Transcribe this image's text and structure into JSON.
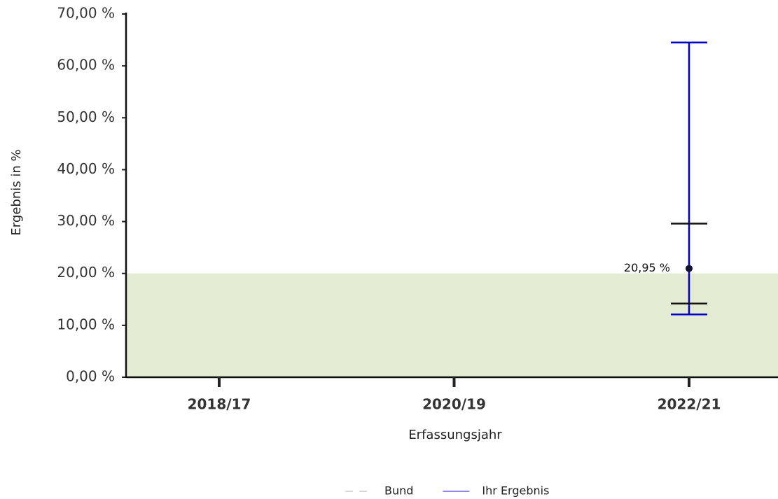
{
  "chart_data": {
    "type": "errorbar",
    "x_label": "Erfassungsjahr",
    "y_label": "Ergebnis in %",
    "categories": [
      "2018/17",
      "2020/19",
      "2022/21"
    ],
    "ylim": [
      0,
      70
    ],
    "yticks": [
      {
        "value": 0,
        "label": "0,00 %"
      },
      {
        "value": 10,
        "label": "10,00 %"
      },
      {
        "value": 20,
        "label": "20,00 %"
      },
      {
        "value": 30,
        "label": "30,00 %"
      },
      {
        "value": 40,
        "label": "40,00 %"
      },
      {
        "value": 50,
        "label": "50,00 %"
      },
      {
        "value": 60,
        "label": "60,00 %"
      },
      {
        "value": 70,
        "label": "70,00 %"
      }
    ],
    "reference_area": {
      "range": [
        0,
        20
      ],
      "color": "#e3ecd3"
    },
    "series": [
      {
        "name": "Bund",
        "color": "#aaaaaa",
        "dashed": true,
        "values": [
          null,
          null,
          null
        ]
      },
      {
        "name": "Ihr Ergebnis",
        "color": "#0000cc",
        "point_color": "#111133",
        "values": [
          null,
          null,
          20.95
        ],
        "value_labels": [
          null,
          null,
          "20,95 %"
        ],
        "ci_lower": [
          null,
          null,
          12.1
        ],
        "ci_upper": [
          null,
          null,
          64.5
        ],
        "range_color": "#111111",
        "range_lower": [
          null,
          null,
          14.2
        ],
        "range_upper": [
          null,
          null,
          29.6
        ]
      }
    ]
  }
}
